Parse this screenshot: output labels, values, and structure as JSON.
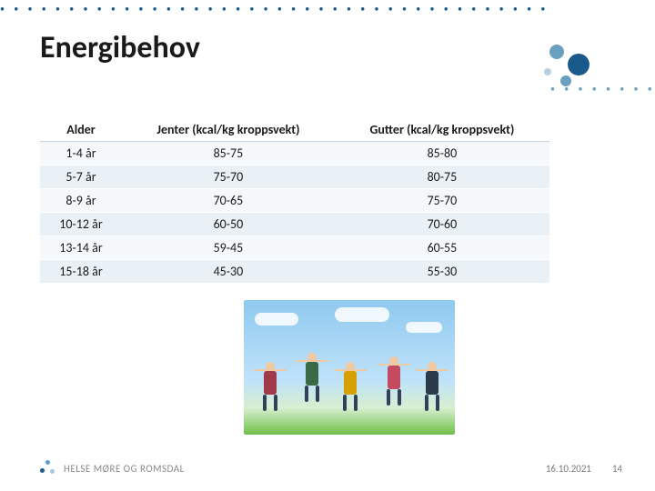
{
  "title": "Energibehov",
  "table": {
    "columns": [
      "Alder",
      "Jenter (kcal/kg kroppsvekt)",
      "Gutter (kcal/kg kroppsvekt)"
    ],
    "rows": [
      [
        "1-4 år",
        "85-75",
        "85-80"
      ],
      [
        "5-7 år",
        "75-70",
        "80-75"
      ],
      [
        "8-9 år",
        "70-65",
        "75-70"
      ],
      [
        "10-12 år",
        "60-50",
        "70-60"
      ],
      [
        "13-14 år",
        "59-45",
        "60-55"
      ],
      [
        "15-18 år",
        "45-30",
        "55-30"
      ]
    ],
    "band_colors": [
      "#f5f8fb",
      "#eaf1f6"
    ],
    "header_text_color": "#1a1a1a",
    "font_size_pt": 11
  },
  "footer": {
    "logo_text": "HELSE MØRE OG ROMSDAL",
    "date": "16.10.2021",
    "page": "14"
  },
  "theme": {
    "accent_dark": "#1a5a8a",
    "accent_mid": "#6a9fc0",
    "accent_light": "#b7d1e2",
    "title_color": "#1a1a1a",
    "title_fontsize_pt": 26,
    "background": "#ffffff"
  },
  "image": {
    "alt": "children-jumping-photo",
    "sky_top": "#8fc9ef",
    "sky_bottom": "#bfe2fa",
    "grass": "#6fbf4a"
  }
}
